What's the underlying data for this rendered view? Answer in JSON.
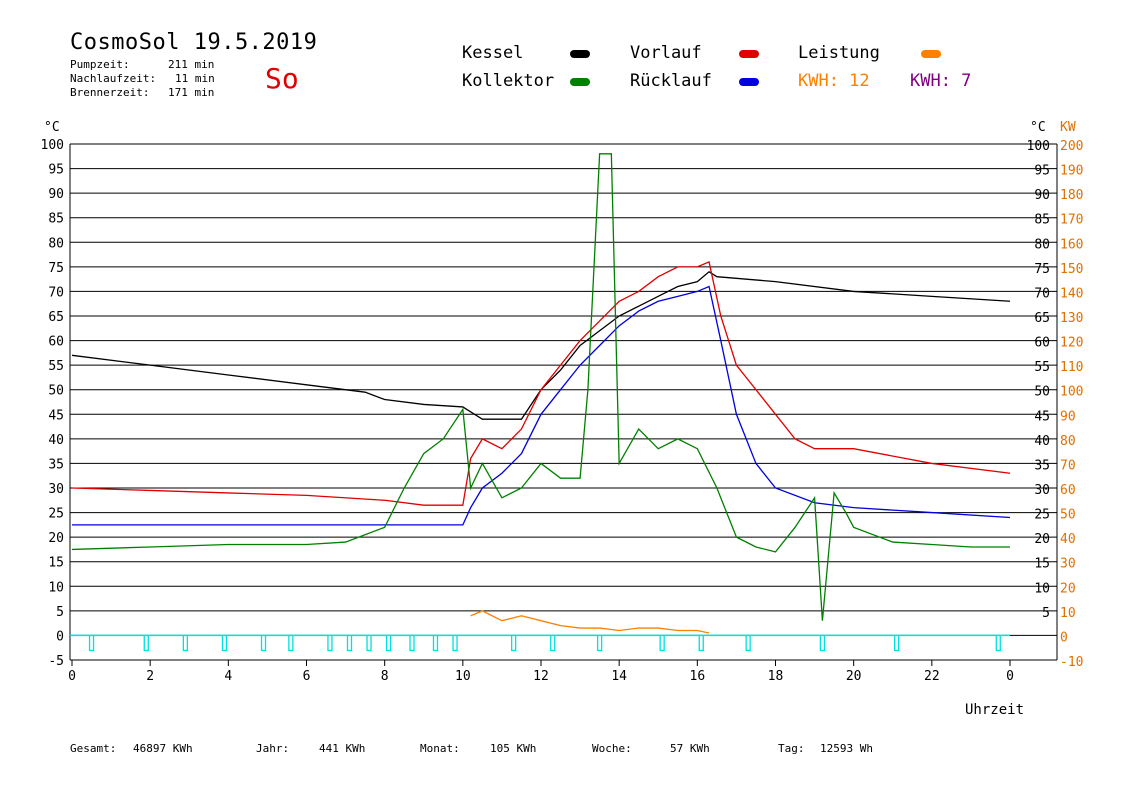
{
  "header": {
    "title": "CosmoSol 19.5.2019",
    "day": "So",
    "stats": [
      {
        "label": "Pumpzeit:",
        "value": "211 min"
      },
      {
        "label": "Nachlaufzeit:",
        "value": "11 min"
      },
      {
        "label": "Brennerzeit:",
        "value": "171 min"
      }
    ]
  },
  "legend": {
    "kessel": "Kessel",
    "kollektor": "Kollektor",
    "vorlauf": "Vorlauf",
    "ruecklauf": "Rücklauf",
    "leistung": "Leistung",
    "kwh_orange": "KWH: 12",
    "kwh_purple": "KWH: 7"
  },
  "footer": {
    "gesamt_label": "Gesamt:",
    "gesamt_value": "46897 KWh",
    "jahr_label": "Jahr:",
    "jahr_value": "441 KWh",
    "monat_label": "Monat:",
    "monat_value": "105 KWh",
    "woche_label": "Woche:",
    "woche_value": "57 KWh",
    "tag_label": "Tag:",
    "tag_value": "12593 Wh"
  },
  "colors": {
    "kessel": "#000000",
    "kollektor": "#008000",
    "vorlauf": "#e00000",
    "ruecklauf": "#0000e0",
    "leistung": "#ff8000",
    "leistung2": "#800080",
    "pump": "#00e0e0",
    "axis_kw": "#e07000"
  },
  "chart_data": {
    "type": "line",
    "xlabel": "Uhrzeit",
    "ylabel_left": "°C",
    "ylabel_right": "°C",
    "ylabel_right2": "KW",
    "xlim": [
      0,
      24
    ],
    "ylim": [
      -5,
      100
    ],
    "y2lim": [
      -10,
      200
    ],
    "grid": true,
    "x_ticks": [
      "0",
      "2",
      "4",
      "6",
      "8",
      "10",
      "12",
      "14",
      "16",
      "18",
      "20",
      "22",
      "0"
    ],
    "y_ticks_left": [
      "100",
      "95",
      "90",
      "85",
      "80",
      "75",
      "70",
      "65",
      "60",
      "55",
      "50",
      "45",
      "40",
      "35",
      "30",
      "25",
      "20",
      "15",
      "10",
      "5",
      "0",
      "-5"
    ],
    "y_ticks_right": [
      "100",
      "95",
      "90",
      "85",
      "80",
      "75",
      "70",
      "65",
      "60",
      "55",
      "50",
      "45",
      "40",
      "35",
      "30",
      "25",
      "20",
      "15",
      "10",
      "5"
    ],
    "y_ticks_kw": [
      "200",
      "190",
      "180",
      "170",
      "160",
      "150",
      "140",
      "130",
      "120",
      "110",
      "100",
      "90",
      "80",
      "70",
      "60",
      "50",
      "40",
      "30",
      "20",
      "10",
      "0",
      "-10"
    ],
    "series": [
      {
        "name": "Kessel",
        "color": "#000000",
        "x": [
          0,
          2,
          4,
          6,
          7.5,
          8,
          9,
          10,
          10.3,
          10.5,
          11,
          11.5,
          12,
          12.5,
          13,
          13.5,
          14,
          14.5,
          15,
          15.5,
          16,
          16.3,
          16.5,
          18,
          20,
          22,
          24
        ],
        "y": [
          57,
          55,
          53,
          51,
          49.5,
          48,
          47,
          46.5,
          45,
          44,
          44,
          44,
          50,
          54,
          59,
          62,
          65,
          67,
          69,
          71,
          72,
          74,
          73,
          72,
          70,
          69,
          68
        ]
      },
      {
        "name": "Vorlauf",
        "color": "#e00000",
        "x": [
          0,
          2,
          4,
          6,
          8,
          9,
          10,
          10.2,
          10.5,
          11,
          11.5,
          12,
          12.5,
          13,
          13.5,
          14,
          14.5,
          15,
          15.5,
          16,
          16.3,
          16.6,
          17,
          18,
          18.5,
          19,
          20,
          22,
          24
        ],
        "y": [
          30,
          29.5,
          29,
          28.5,
          27.5,
          26.5,
          26.5,
          36,
          40,
          38,
          42,
          50,
          55,
          60,
          64,
          68,
          70,
          73,
          75,
          75,
          76,
          65,
          55,
          45,
          40,
          38,
          38,
          35,
          33
        ]
      },
      {
        "name": "Rücklauf",
        "color": "#0000e0",
        "x": [
          0,
          2,
          4,
          6,
          8,
          10,
          10.2,
          10.5,
          11,
          11.5,
          12,
          12.5,
          13,
          13.5,
          14,
          14.5,
          15,
          15.5,
          16,
          16.3,
          16.6,
          17,
          17.5,
          18,
          19,
          20,
          22,
          24
        ],
        "y": [
          22.5,
          22.5,
          22.5,
          22.5,
          22.5,
          22.5,
          26,
          30,
          33,
          37,
          45,
          50,
          55,
          59,
          63,
          66,
          68,
          69,
          70,
          71,
          60,
          45,
          35,
          30,
          27,
          26,
          25,
          24
        ]
      },
      {
        "name": "Kollektor",
        "color": "#008000",
        "x": [
          0,
          2,
          4,
          6,
          7,
          8,
          8.5,
          9,
          9.5,
          10,
          10.2,
          10.5,
          11,
          11.5,
          12,
          12.5,
          13,
          13.2,
          13.5,
          13.8,
          14,
          14.5,
          15,
          15.5,
          16,
          16.5,
          17,
          17.5,
          18,
          18.5,
          19,
          19.2,
          19.5,
          19.8,
          20,
          21,
          22,
          23,
          24
        ],
        "y": [
          17.5,
          18,
          18.5,
          18.5,
          19,
          22,
          30,
          37,
          40,
          46,
          30,
          35,
          28,
          30,
          35,
          32,
          32,
          50,
          98,
          98,
          35,
          42,
          38,
          40,
          38,
          30,
          20,
          18,
          17,
          22,
          28,
          3,
          29,
          25,
          22,
          19,
          18.5,
          18,
          18
        ]
      },
      {
        "name": "Leistung",
        "color": "#ff8000",
        "x": [
          10.2,
          10.5,
          11,
          11.5,
          12,
          12.5,
          13,
          13.5,
          14,
          14.5,
          15,
          15.5,
          16,
          16.3
        ],
        "y": [
          4,
          5,
          3,
          4,
          3,
          2,
          1.5,
          1.5,
          1,
          1.5,
          1.5,
          1,
          1,
          0.5
        ]
      }
    ],
    "pump_marks_hours": [
      0.5,
      1.9,
      2.9,
      3.9,
      4.9,
      5.6,
      6.6,
      7.1,
      7.6,
      8.1,
      8.7,
      9.3,
      9.8,
      11.3,
      12.3,
      13.5,
      15.1,
      16.1,
      17.3,
      19.2,
      21.1,
      23.7
    ]
  }
}
